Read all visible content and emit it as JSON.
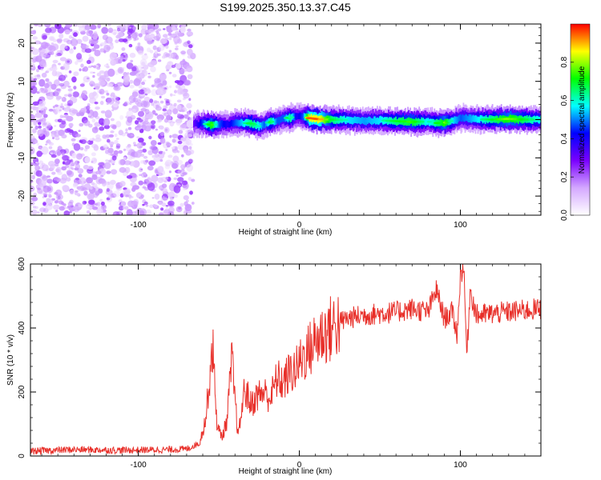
{
  "title": "S199.2025.350.13.37.C45",
  "chart_data": [
    {
      "type": "heatmap",
      "xlabel": "Height of straight line (km)",
      "ylabel": "Frequency (Hz)",
      "xlim": [
        -167,
        150
      ],
      "ylim": [
        -25,
        25
      ],
      "xticks": [
        {
          "value": -100,
          "label": "-100"
        },
        {
          "value": 0,
          "label": "0"
        },
        {
          "value": 100,
          "label": "100"
        }
      ],
      "yticks": [
        {
          "value": -20,
          "label": "-20"
        },
        {
          "value": -10,
          "label": "-10"
        },
        {
          "value": 0,
          "label": "0"
        },
        {
          "value": 10,
          "label": "10"
        },
        {
          "value": 20,
          "label": "20"
        }
      ],
      "noise_region_x": [
        -167,
        -66
      ],
      "signal_region_x": [
        -66,
        150
      ],
      "ridge_x": [
        -66,
        -60,
        -55,
        -50,
        -45,
        -40,
        -35,
        -30,
        -25,
        -22,
        -18,
        -14,
        -10,
        -6,
        -2,
        2,
        6,
        12,
        20,
        30,
        40,
        50,
        60,
        70,
        80,
        85,
        90,
        95,
        100,
        110,
        120,
        130,
        140,
        150
      ],
      "ridge_freq": [
        -1.2,
        -1.0,
        -1.4,
        -1.2,
        -1.3,
        -0.8,
        -0.9,
        -1.0,
        -1.8,
        -1.2,
        -0.6,
        -0.3,
        0.3,
        0.5,
        0.9,
        0.8,
        0.4,
        0.1,
        0.0,
        -0.1,
        -0.3,
        -0.2,
        -0.4,
        -0.6,
        -0.5,
        -0.9,
        -0.8,
        -0.3,
        0.4,
        0.1,
        0.0,
        0.2,
        0.0,
        0.0
      ],
      "ridge_amplitude": [
        0.3,
        0.5,
        0.8,
        0.5,
        0.4,
        0.5,
        0.6,
        0.7,
        0.6,
        0.5,
        0.7,
        0.5,
        0.5,
        0.7,
        0.4,
        0.5,
        0.95,
        0.95,
        0.7,
        0.6,
        0.55,
        0.6,
        0.7,
        0.75,
        0.6,
        0.7,
        0.8,
        0.6,
        0.5,
        0.6,
        0.7,
        0.8,
        0.7,
        0.6
      ],
      "colorbar": {
        "label": "Normalized spectral amplitude",
        "range": [
          0,
          1
        ],
        "ticks": [
          {
            "value": 0.0,
            "label": "0.0"
          },
          {
            "value": 0.2,
            "label": "0.2"
          },
          {
            "value": 0.4,
            "label": "0.4"
          },
          {
            "value": 0.6,
            "label": "0.6"
          },
          {
            "value": 0.8,
            "label": "0.8"
          }
        ],
        "stops": [
          "#ffffff",
          "#d4a8ff",
          "#7a00ff",
          "#0000ff",
          "#00ffff",
          "#00ff00",
          "#ffff00",
          "#ff0000"
        ]
      }
    },
    {
      "type": "line",
      "xlabel": "Height of straight line (km)",
      "ylabel": "SNR (10 * v/v)",
      "xlim": [
        -167,
        150
      ],
      "ylim": [
        0,
        600
      ],
      "xticks": [
        {
          "value": -100,
          "label": "-100"
        },
        {
          "value": 0,
          "label": "0"
        },
        {
          "value": 100,
          "label": "100"
        }
      ],
      "yticks": [
        {
          "value": 0,
          "label": "0"
        },
        {
          "value": 200,
          "label": "200"
        },
        {
          "value": 400,
          "label": "400"
        },
        {
          "value": 600,
          "label": "600"
        }
      ],
      "color": "#e8302a",
      "series": [
        {
          "name": "SNR",
          "x": [
            -167,
            -140,
            -110,
            -80,
            -70,
            -62,
            -58,
            -54,
            -51,
            -48,
            -45,
            -42,
            -38,
            -34,
            -30,
            -26,
            -22,
            -18,
            -14,
            -10,
            -6,
            -2,
            2,
            6,
            10,
            14,
            18,
            22,
            26,
            30,
            40,
            50,
            60,
            70,
            80,
            85,
            90,
            95,
            98,
            100,
            102,
            104,
            106,
            110,
            120,
            130,
            140,
            150
          ],
          "y": [
            15,
            20,
            18,
            20,
            22,
            40,
            120,
            350,
            90,
            60,
            110,
            300,
            60,
            210,
            160,
            190,
            200,
            180,
            240,
            230,
            260,
            270,
            310,
            330,
            360,
            380,
            390,
            410,
            420,
            430,
            440,
            445,
            450,
            460,
            450,
            520,
            430,
            450,
            380,
            560,
            600,
            310,
            520,
            440,
            445,
            450,
            455,
            460
          ]
        }
      ]
    }
  ]
}
